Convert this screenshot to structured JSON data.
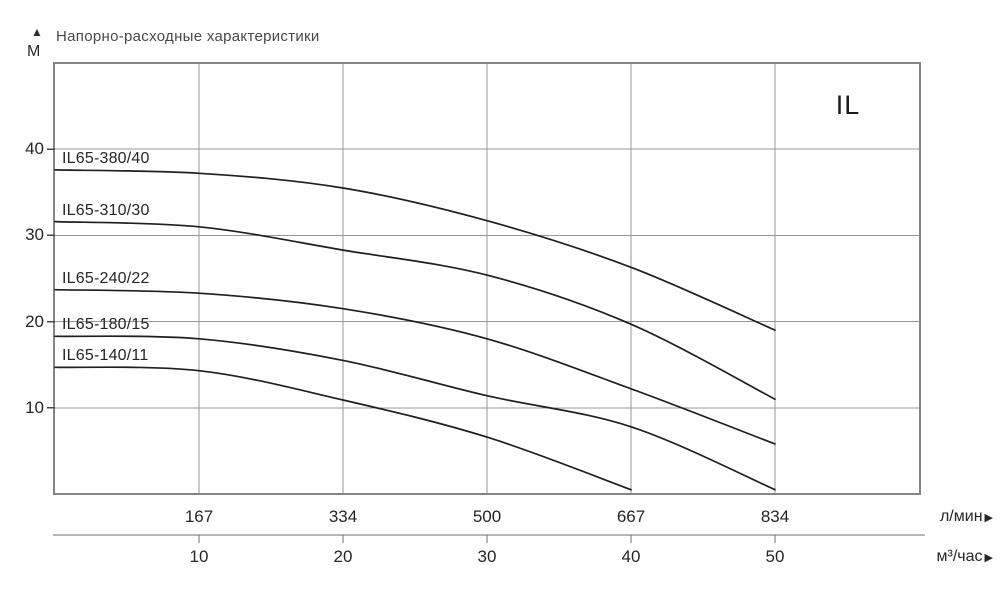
{
  "y_axis": {
    "arrow": "▲",
    "unit": "М",
    "ticks": [
      40,
      30,
      20,
      10
    ]
  },
  "x_axis": {
    "arrow": "▶",
    "primary_unit": "л/мин",
    "secondary_unit": "м³/час",
    "primary_ticks": [
      "167",
      "334",
      "500",
      "667",
      "834"
    ],
    "secondary_ticks": [
      "10",
      "20",
      "30",
      "40",
      "50"
    ]
  },
  "family_label": "IL",
  "colors": {
    "curve": "#1f1f1f",
    "grid": "#979797",
    "border": "#858585",
    "axis2": "#6e6e6e",
    "tick": "#4a4a4a",
    "text": "#262626"
  },
  "chart_data": {
    "type": "line",
    "title": "Напорно-расходные характеристики",
    "ylabel": "М",
    "xlabel_primary": "л/мин",
    "xlabel_secondary": "м³/час",
    "ylim_m": [
      0,
      50
    ],
    "xlim_m3h": [
      0,
      60
    ],
    "y_gridlines_m": [
      10,
      20,
      30,
      40
    ],
    "x_gridlines_m3h": [
      10,
      20,
      30,
      40,
      50
    ],
    "x_tick_pairs": [
      {
        "l_min": 167,
        "m3_h": 10
      },
      {
        "l_min": 334,
        "m3_h": 20
      },
      {
        "l_min": 500,
        "m3_h": 30
      },
      {
        "l_min": 667,
        "m3_h": 40
      },
      {
        "l_min": 834,
        "m3_h": 50
      }
    ],
    "grid": true,
    "legend_position": "labels-above-curves-left",
    "series": [
      {
        "name": "IL65-380/40",
        "points_q_h": [
          [
            0,
            37.6
          ],
          [
            10,
            37.2
          ],
          [
            20,
            35.5
          ],
          [
            30,
            31.7
          ],
          [
            40,
            26.3
          ],
          [
            50,
            19.0
          ]
        ]
      },
      {
        "name": "IL65-310/30",
        "points_q_h": [
          [
            0,
            31.6
          ],
          [
            10,
            31.0
          ],
          [
            20,
            28.3
          ],
          [
            30,
            25.4
          ],
          [
            40,
            19.7
          ],
          [
            50,
            11.0
          ]
        ]
      },
      {
        "name": "IL65-240/22",
        "points_q_h": [
          [
            0,
            23.7
          ],
          [
            10,
            23.3
          ],
          [
            20,
            21.5
          ],
          [
            30,
            18.0
          ],
          [
            40,
            12.2
          ],
          [
            50,
            5.8
          ]
        ]
      },
      {
        "name": "IL65-180/15",
        "points_q_h": [
          [
            0,
            18.3
          ],
          [
            10,
            18.0
          ],
          [
            20,
            15.5
          ],
          [
            30,
            11.4
          ],
          [
            40,
            7.8
          ],
          [
            50,
            0.5
          ]
        ]
      },
      {
        "name": "IL65-140/11",
        "points_q_h": [
          [
            0,
            14.7
          ],
          [
            10,
            14.3
          ],
          [
            20,
            10.9
          ],
          [
            30,
            6.6
          ],
          [
            40,
            0.5
          ]
        ]
      }
    ]
  }
}
